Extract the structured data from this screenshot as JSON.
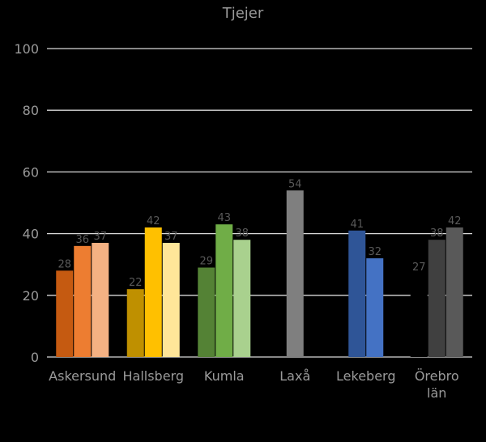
{
  "chart_data": {
    "type": "bar",
    "title": "Tjejer",
    "xlabel": "",
    "ylabel": "",
    "ylim": [
      0,
      100
    ],
    "yticks": [
      0,
      20,
      40,
      60,
      80,
      100
    ],
    "grid": true,
    "legend": "none",
    "groups": [
      {
        "label_lines": [
          "Askersund"
        ],
        "bars": [
          {
            "value": 28,
            "label": "28",
            "color": "#c55a11"
          },
          {
            "value": 36,
            "label": "36",
            "color": "#ed7d31"
          },
          {
            "value": 37,
            "label": "37",
            "color": "#f4b183"
          }
        ]
      },
      {
        "label_lines": [
          "Hallsberg"
        ],
        "bars": [
          {
            "value": 22,
            "label": "22",
            "color": "#bf9000"
          },
          {
            "value": 42,
            "label": "42",
            "color": "#ffc000"
          },
          {
            "value": 37,
            "label": "37",
            "color": "#ffe699"
          }
        ]
      },
      {
        "label_lines": [
          "Kumla"
        ],
        "bars": [
          {
            "value": 29,
            "label": "29",
            "color": "#548235"
          },
          {
            "value": 43,
            "label": "43",
            "color": "#70ad47"
          },
          {
            "value": 38,
            "label": "38",
            "color": "#a9d18e"
          }
        ]
      },
      {
        "label_lines": [
          "Laxå"
        ],
        "bars": [
          {
            "value": 54,
            "label": "54",
            "color": "#7f7f7f"
          }
        ]
      },
      {
        "label_lines": [
          "Lekeberg"
        ],
        "bars": [
          {
            "value": 41,
            "label": "41",
            "color": "#2f5597"
          },
          {
            "value": 32,
            "label": "32",
            "color": "#4472c4"
          }
        ]
      },
      {
        "label_lines": [
          "Örebro",
          "län"
        ],
        "bars": [
          {
            "value": 27,
            "label": "27",
            "color": "#000000"
          },
          {
            "value": 38,
            "label": "38",
            "color": "#404040"
          },
          {
            "value": 42,
            "label": "42",
            "color": "#595959"
          }
        ]
      }
    ]
  }
}
